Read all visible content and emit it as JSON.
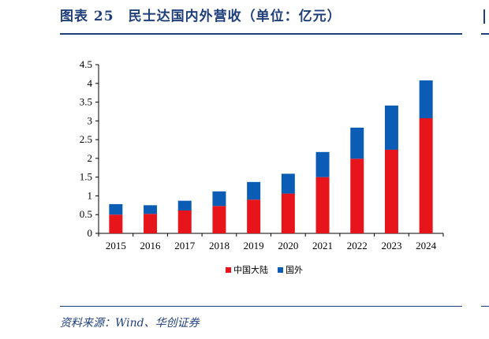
{
  "figure": {
    "title": "图表 25　民士达国内外营收（单位：亿元）",
    "source": "资料来源：Wind、华创证券"
  },
  "colors": {
    "domestic": "#e8141c",
    "overseas": "#0b5cb5",
    "title": "#1f3f7a"
  },
  "chart_data": {
    "type": "bar",
    "stacked": true,
    "categories": [
      "2015",
      "2016",
      "2017",
      "2018",
      "2019",
      "2020",
      "2021",
      "2022",
      "2023",
      "2024"
    ],
    "series": [
      {
        "name": "中国大陆",
        "values": [
          0.5,
          0.52,
          0.61,
          0.73,
          0.9,
          1.06,
          1.5,
          1.99,
          2.23,
          3.07
        ]
      },
      {
        "name": "国外",
        "values": [
          0.28,
          0.23,
          0.26,
          0.39,
          0.47,
          0.53,
          0.67,
          0.83,
          1.18,
          1.01
        ]
      }
    ],
    "yticks": [
      "0",
      "0.5",
      "1",
      "1.5",
      "2",
      "2.5",
      "3",
      "3.5",
      "4",
      "4.5"
    ],
    "ylim": [
      0,
      4.5
    ],
    "legend_position": "bottom-center",
    "grid": false
  }
}
